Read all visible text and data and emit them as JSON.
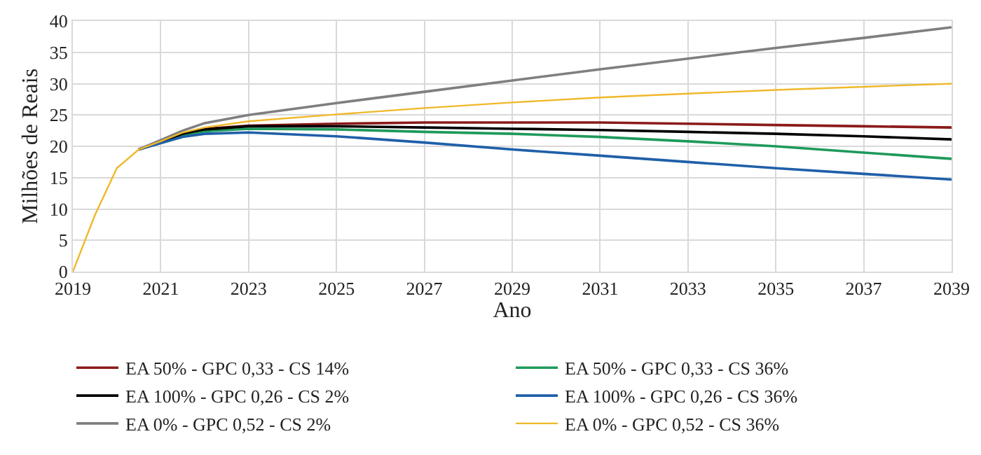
{
  "chart_data": {
    "type": "line",
    "xlabel": "Ano",
    "ylabel": "Milhões de Reais",
    "x": [
      2019,
      2019.5,
      2020,
      2020.5,
      2021,
      2021.5,
      2022,
      2023,
      2025,
      2027,
      2029,
      2031,
      2033,
      2035,
      2037,
      2039
    ],
    "series": [
      {
        "name": "EA 50% - GPC 0,33 - CS 14%",
        "color": "#8b1a1a",
        "values": [
          null,
          null,
          null,
          19.5,
          20.7,
          22,
          22.8,
          23.3,
          23.6,
          23.8,
          23.8,
          23.8,
          23.6,
          23.4,
          23.2,
          23
        ]
      },
      {
        "name": "EA 50% - GPC 0,33 - CS 36%",
        "color": "#1e9a5a",
        "values": [
          null,
          null,
          null,
          19.5,
          20.6,
          21.8,
          22.4,
          22.8,
          22.7,
          22.3,
          22,
          21.5,
          20.8,
          20,
          19,
          18
        ]
      },
      {
        "name": "EA 100% - GPC 0,26 - CS 2%",
        "color": "#000000",
        "values": [
          null,
          null,
          null,
          19.5,
          20.7,
          22,
          22.7,
          23.2,
          23.2,
          23,
          22.8,
          22.6,
          22.3,
          22,
          21.6,
          21.1
        ]
      },
      {
        "name": "EA 100% - GPC 0,26 - CS 36%",
        "color": "#1f5fa8",
        "values": [
          null,
          null,
          null,
          19.5,
          20.5,
          21.5,
          22,
          22.2,
          21.6,
          20.6,
          19.5,
          18.5,
          17.5,
          16.5,
          15.6,
          14.7
        ]
      },
      {
        "name": "EA 0% - GPC 0,52 - CS 2%",
        "color": "#7f7f7f",
        "values": [
          null,
          null,
          null,
          19.5,
          21,
          22.5,
          23.7,
          25,
          26.9,
          28.7,
          30.5,
          32.3,
          34,
          35.7,
          37.3,
          39
        ]
      },
      {
        "name": "EA 0% - GPC 0,52 - CS 36%",
        "color": "#f0b82a",
        "values": [
          0,
          9,
          16.5,
          19.5,
          20.8,
          22.2,
          23,
          24,
          25.1,
          26.1,
          27,
          27.8,
          28.4,
          29,
          29.5,
          30
        ]
      }
    ],
    "xlim": [
      2019,
      2039
    ],
    "xticks": [
      2019,
      2021,
      2023,
      2025,
      2027,
      2029,
      2031,
      2033,
      2035,
      2037,
      2039
    ],
    "ylim": [
      0,
      40
    ],
    "yticks": [
      0,
      5,
      10,
      15,
      20,
      25,
      30,
      35,
      40
    ],
    "grid": true,
    "legend": "bottom",
    "marker": "none",
    "line_style": "solid"
  }
}
